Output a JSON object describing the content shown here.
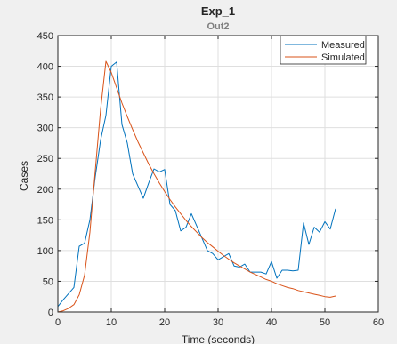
{
  "chart_data": {
    "type": "line",
    "title": "Exp_1",
    "subtitle": "Out2",
    "xlabel": "Time (seconds)",
    "ylabel": "Cases",
    "xlim": [
      0,
      60
    ],
    "ylim": [
      0,
      450
    ],
    "xticks": [
      0,
      10,
      20,
      30,
      40,
      50,
      60
    ],
    "yticks": [
      0,
      50,
      100,
      150,
      200,
      250,
      300,
      350,
      400,
      450
    ],
    "grid": true,
    "legend": "top-right",
    "colors": {
      "background": "#f0f0f0",
      "axes": "#ffffff",
      "grid": "#dfdfdf",
      "axis_line": "#262626",
      "text": "#262626"
    },
    "series": [
      {
        "name": "Measured",
        "color": "#0072bd",
        "x": [
          0,
          1,
          2,
          3,
          4,
          5,
          6,
          7,
          8,
          9,
          10,
          11,
          12,
          13,
          14,
          15,
          16,
          17,
          18,
          19,
          20,
          21,
          22,
          23,
          24,
          25,
          26,
          27,
          28,
          29,
          30,
          31,
          32,
          33,
          34,
          35,
          36,
          37,
          38,
          39,
          40,
          41,
          42,
          43,
          44,
          45,
          46,
          47,
          48,
          49,
          50,
          51,
          52
        ],
        "y": [
          9,
          20,
          30,
          40,
          107,
          112,
          150,
          220,
          280,
          320,
          400,
          407,
          305,
          275,
          225,
          205,
          185,
          210,
          233,
          228,
          232,
          175,
          165,
          132,
          138,
          160,
          140,
          120,
          100,
          95,
          85,
          90,
          95,
          75,
          73,
          78,
          65,
          65,
          65,
          62,
          82,
          55,
          68,
          68,
          67,
          68,
          145,
          110,
          138,
          130,
          147,
          135,
          168
        ]
      },
      {
        "name": "Simulated",
        "color": "#d95319",
        "x": [
          0,
          1,
          2,
          3,
          4,
          5,
          6,
          7,
          8,
          9,
          10,
          11,
          12,
          13,
          14,
          15,
          16,
          17,
          18,
          19,
          20,
          21,
          22,
          23,
          24,
          25,
          26,
          27,
          28,
          29,
          30,
          31,
          32,
          33,
          34,
          35,
          36,
          37,
          38,
          39,
          40,
          41,
          42,
          43,
          44,
          45,
          46,
          47,
          48,
          49,
          50,
          51,
          52
        ],
        "y": [
          0,
          2,
          6,
          12,
          28,
          60,
          130,
          230,
          330,
          408,
          390,
          365,
          340,
          318,
          297,
          277,
          259,
          241,
          225,
          210,
          196,
          183,
          171,
          160,
          149,
          139,
          130,
          121,
          113,
          106,
          99,
          92,
          86,
          80,
          75,
          70,
          65,
          61,
          57,
          53,
          50,
          46,
          43,
          40,
          38,
          35,
          33,
          31,
          29,
          27,
          25,
          24,
          26
        ]
      }
    ]
  }
}
